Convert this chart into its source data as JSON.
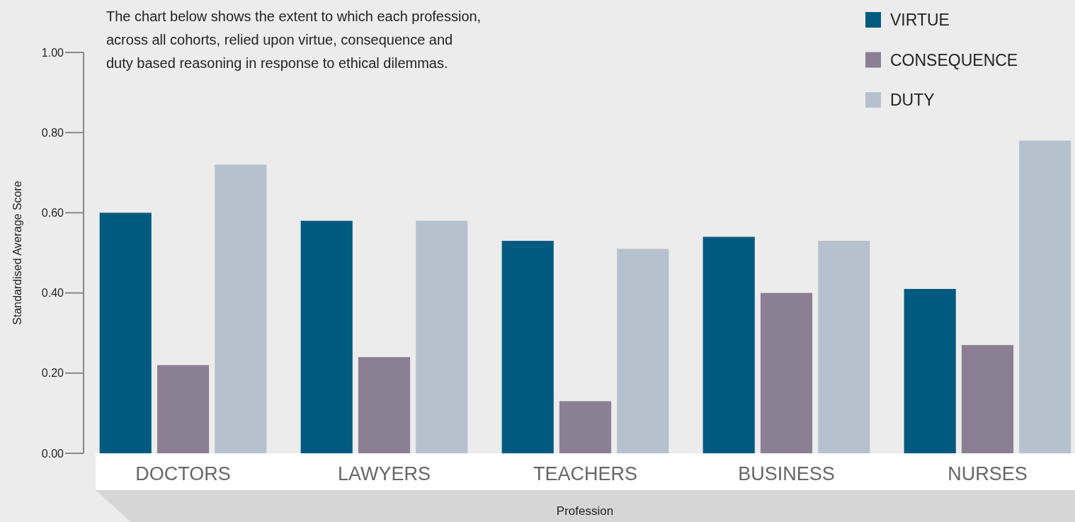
{
  "chart_data": {
    "type": "bar",
    "subtitle": "The chart below shows the extent to which each profession, across all cohorts, relied upon virtue, consequence and duty based reasoning in response to ethical dilemmas.",
    "xlabel": "Profession",
    "ylabel": "Standardised Average Score",
    "categories": [
      "DOCTORS",
      "LAWYERS",
      "TEACHERS",
      "BUSINESS",
      "NURSES"
    ],
    "series": [
      {
        "name": "VIRTUE",
        "color": "#005a80",
        "values": [
          0.6,
          0.58,
          0.53,
          0.54,
          0.41
        ]
      },
      {
        "name": "CONSEQUENCE",
        "color": "#8a7f93",
        "values": [
          0.22,
          0.24,
          0.13,
          0.4,
          0.27
        ]
      },
      {
        "name": "DUTY",
        "color": "#b5c2cd",
        "values": [
          0.72,
          0.58,
          0.51,
          0.53,
          0.78
        ]
      }
    ],
    "ylim": [
      0,
      1
    ],
    "yticks": [
      {
        "value": 0,
        "label": "0.00"
      },
      {
        "value": 0.2,
        "label": "0.20"
      },
      {
        "value": 0.4,
        "label": "0.40"
      },
      {
        "value": 0.6,
        "label": "0.60"
      },
      {
        "value": 0.8,
        "label": "0.80"
      },
      {
        "value": 1,
        "label": "1.00"
      }
    ],
    "grid": false,
    "legend": "top right"
  }
}
